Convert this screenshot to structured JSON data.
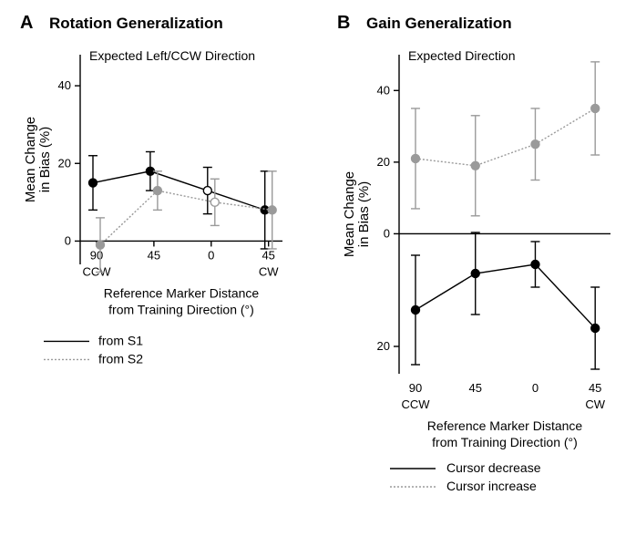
{
  "panelA": {
    "label": "A",
    "title": "Rotation Generalization",
    "annotation": "Expected Left/CCW Direction",
    "ylabel_line1": "Mean Change",
    "ylabel_line2": "in Bias (%)",
    "xlabel_line1": "Reference Marker Distance",
    "xlabel_line2": "from Training Direction (°)",
    "x_ticks": [
      "90",
      "45",
      "0",
      "45"
    ],
    "x_secondary": [
      "CCW",
      "",
      "",
      "CW"
    ],
    "y_ticks": [
      0,
      20,
      40
    ],
    "ylim": [
      -6,
      48
    ],
    "series": [
      {
        "name": "from S1",
        "color": "#000000",
        "dash": "none",
        "marker_color": "#000000",
        "points": [
          {
            "x": 0,
            "y": 15,
            "err": 7,
            "open": false
          },
          {
            "x": 1,
            "y": 18,
            "err": 5,
            "open": false
          },
          {
            "x": 2,
            "y": 13,
            "err": 6,
            "open": true
          },
          {
            "x": 3,
            "y": 8,
            "err": 10,
            "open": false
          }
        ]
      },
      {
        "name": "from S2",
        "color": "#9a9a9a",
        "dash": "2,2",
        "marker_color": "#9a9a9a",
        "points": [
          {
            "x": 0,
            "y": -1,
            "err": 7,
            "open": false
          },
          {
            "x": 1,
            "y": 13,
            "err": 5,
            "open": false
          },
          {
            "x": 2,
            "y": 10,
            "err": 6,
            "open": true
          },
          {
            "x": 3,
            "y": 8,
            "err": 10,
            "open": false
          }
        ]
      }
    ],
    "legend": [
      {
        "label": "from S1",
        "color": "#000000",
        "dash": "none"
      },
      {
        "label": "from S2",
        "color": "#9a9a9a",
        "dash": "2,2"
      }
    ]
  },
  "panelB": {
    "label": "B",
    "title": "Gain Generalization",
    "annotation": "Expected Direction",
    "ylabel_line1": "Mean Change",
    "ylabel_line2": "in Bias (%)",
    "xlabel_line1": "Reference Marker Distance",
    "xlabel_line2": "from Training Direction (°)",
    "x_ticks": [
      "90",
      "45",
      "0",
      "45"
    ],
    "x_secondary": [
      "CCW",
      "",
      "",
      "CW"
    ],
    "y_ticks_top": [
      0,
      20,
      40
    ],
    "y_ticks_bot": [
      20
    ],
    "ylim_top": [
      -6,
      50
    ],
    "ylim_bot": [
      -26,
      6
    ],
    "series_top": {
      "name": "Cursor increase",
      "color": "#9a9a9a",
      "dash": "2,2",
      "points": [
        {
          "x": 0,
          "y": 21,
          "err": 14
        },
        {
          "x": 1,
          "y": 19,
          "err": 14
        },
        {
          "x": 2,
          "y": 25,
          "err": 10
        },
        {
          "x": 3,
          "y": 35,
          "err": 13
        }
      ]
    },
    "series_bot": {
      "name": "Cursor decrease",
      "color": "#000000",
      "dash": "none",
      "points": [
        {
          "x": 0,
          "y": -12,
          "err": 12
        },
        {
          "x": 1,
          "y": -4,
          "err": 9
        },
        {
          "x": 2,
          "y": -2,
          "err": 5
        },
        {
          "x": 3,
          "y": -16,
          "err": 9
        }
      ]
    },
    "legend": [
      {
        "label": "Cursor decrease",
        "color": "#000000",
        "dash": "none"
      },
      {
        "label": "Cursor increase",
        "color": "#9a9a9a",
        "dash": "2,2"
      }
    ]
  },
  "style": {
    "background": "#ffffff",
    "axis_color": "#000000",
    "axis_width": 1.4,
    "marker_radius": 4.5,
    "error_cap": 5,
    "line_width": 1.4,
    "font_family": "Arial"
  }
}
